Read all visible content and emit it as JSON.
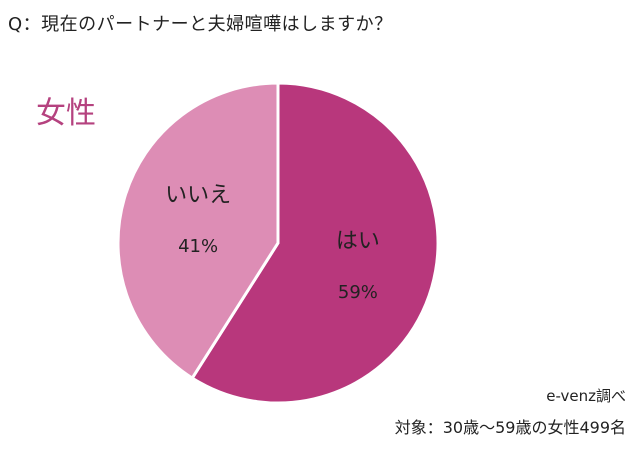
{
  "question": "Q：現在のパートナーと夫婦喧嘩はしますか？",
  "group_label": "女性",
  "source": "e-venz調べ",
  "target": "対象：30歳〜59歳の女性499名",
  "colors": {
    "yes": "#b8377c",
    "no": "#dd8db5",
    "group_label": "#b5427f"
  },
  "chart_data": {
    "type": "pie",
    "title": "",
    "slices": [
      {
        "label": "はい",
        "value": 59,
        "value_label": "59%",
        "color": "#b8377c"
      },
      {
        "label": "いいえ",
        "value": 41,
        "value_label": "41%",
        "color": "#dd8db5"
      }
    ]
  }
}
